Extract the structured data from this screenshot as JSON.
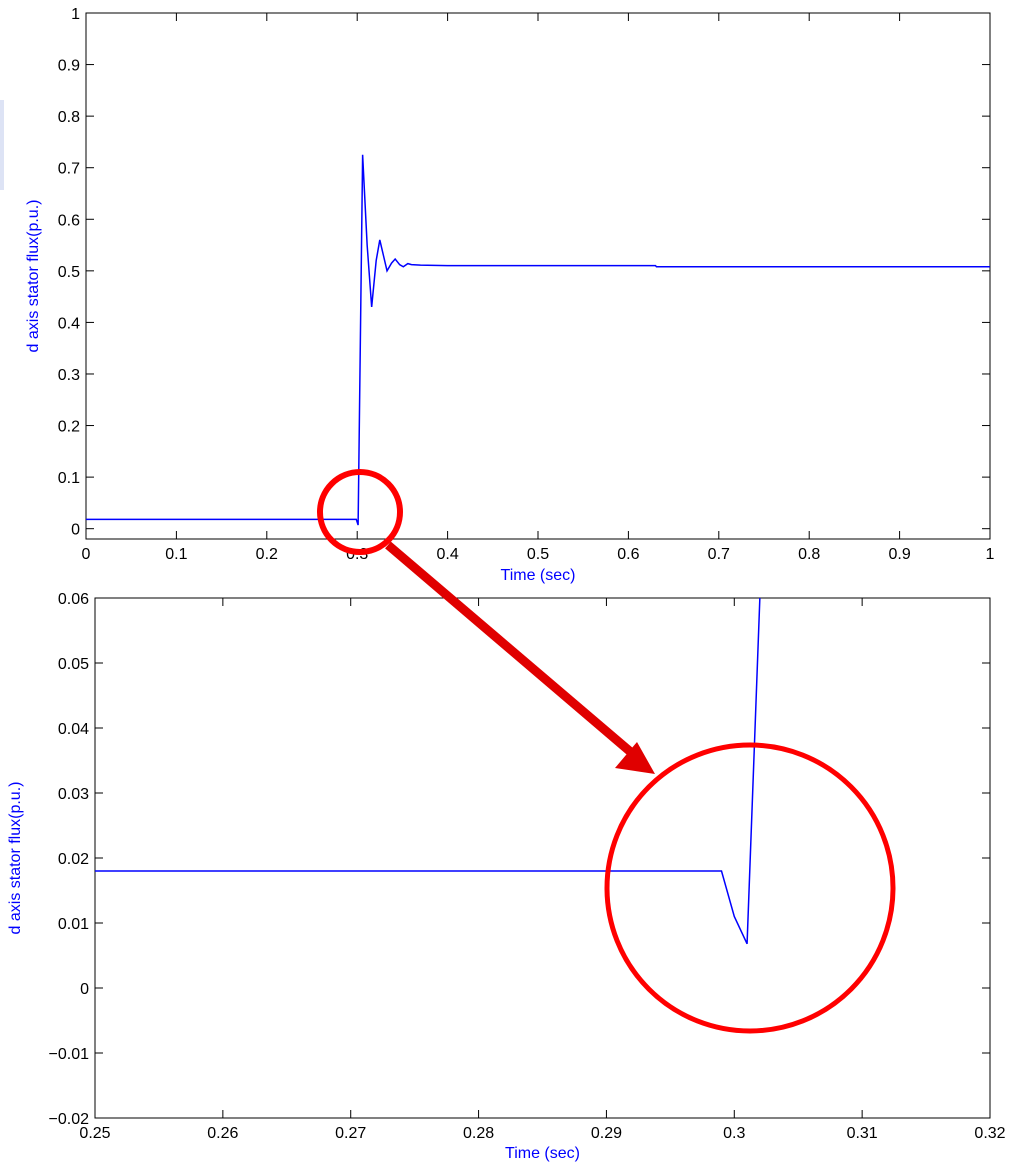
{
  "chart_data": [
    {
      "type": "line",
      "x_label": "Time (sec)",
      "y_label": "d axis stator flux(p.u.)",
      "xlim": [
        0,
        1
      ],
      "xticks": [
        0,
        0.1,
        0.2,
        0.3,
        0.4,
        0.5,
        0.6,
        0.7,
        0.8,
        0.9,
        1
      ],
      "ylim": [
        -0.02,
        1
      ],
      "yticks": [
        0,
        0.1,
        0.2,
        0.3,
        0.4,
        0.5,
        0.6,
        0.7,
        0.8,
        0.9,
        1
      ],
      "series": [
        {
          "color": "#0000ff",
          "x": [
            0,
            0.299,
            0.301,
            0.306,
            0.311,
            0.316,
            0.321,
            0.325,
            0.329,
            0.333,
            0.338,
            0.342,
            0.347,
            0.351,
            0.356,
            0.36,
            0.37,
            0.4,
            0.63,
            0.631,
            1
          ],
          "values": [
            0.018,
            0.018,
            0.007,
            0.725,
            0.55,
            0.43,
            0.52,
            0.56,
            0.53,
            0.5,
            0.515,
            0.523,
            0.512,
            0.508,
            0.514,
            0.512,
            0.511,
            0.51,
            0.51,
            0.508,
            0.508
          ]
        }
      ]
    },
    {
      "type": "line",
      "x_label": "Time (sec)",
      "y_label": "d axis stator flux(p.u.)",
      "xlim": [
        0.25,
        0.32
      ],
      "xticks": [
        0.25,
        0.26,
        0.27,
        0.28,
        0.29,
        0.3,
        0.31,
        0.32
      ],
      "ylim": [
        -0.02,
        0.06
      ],
      "yticks": [
        {
          "value": -0.02,
          "label": "−0.02"
        },
        {
          "value": -0.01,
          "label": "−0.01"
        },
        0,
        0.01,
        0.02,
        0.03,
        0.04,
        0.05,
        0.06
      ],
      "series": [
        {
          "color": "#0000ff",
          "x": [
            0.25,
            0.299,
            0.3,
            0.301,
            0.302
          ],
          "values": [
            0.018,
            0.018,
            0.011,
            0.0068,
            0.06
          ]
        }
      ]
    }
  ]
}
